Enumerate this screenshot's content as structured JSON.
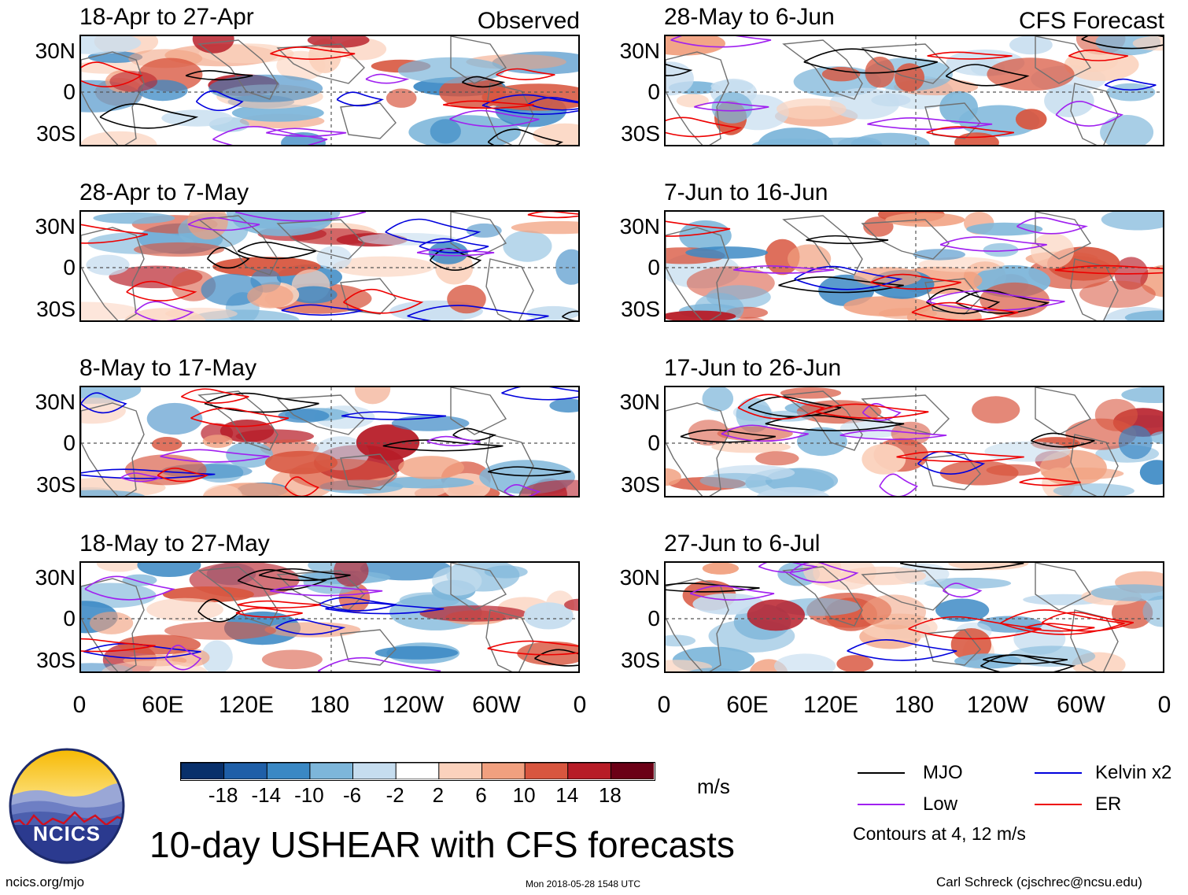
{
  "chart_data": {
    "type": "heatmap",
    "title": "10-day USHEAR with CFS forecasts",
    "units": "m/s",
    "columns": [
      {
        "tag": "Observed",
        "panels": [
          {
            "title": "18-Apr to 27-Apr"
          },
          {
            "title": "28-Apr to 7-May"
          },
          {
            "title": "8-May to 17-May"
          },
          {
            "title": "18-May to 27-May"
          }
        ]
      },
      {
        "tag": "CFS Forecast",
        "panels": [
          {
            "title": "28-May to 6-Jun"
          },
          {
            "title": "7-Jun to 16-Jun"
          },
          {
            "title": "17-Jun to 26-Jun"
          },
          {
            "title": "27-Jun to 6-Jul"
          }
        ]
      }
    ],
    "y_ticks": [
      "30N",
      "0",
      "30S"
    ],
    "x_ticks": [
      "0",
      "60E",
      "120E",
      "180",
      "120W",
      "60W",
      "0"
    ],
    "colorbar": {
      "ticks": [
        "-18",
        "-14",
        "-10",
        "-6",
        "-2",
        "2",
        "6",
        "10",
        "14",
        "18"
      ],
      "colors": [
        "#08306b",
        "#1f5fa8",
        "#3a88c4",
        "#7db6da",
        "#c6ddef",
        "#ffffff",
        "#fbd2bd",
        "#f1a07f",
        "#d8563f",
        "#b71c27",
        "#6b0016"
      ]
    },
    "legend": [
      {
        "label": "MJO",
        "color": "#000000"
      },
      {
        "label": "Kelvin x2",
        "color": "#0000dd"
      },
      {
        "label": "Low",
        "color": "#a020f0"
      },
      {
        "label": "ER",
        "color": "#ee0000"
      }
    ],
    "contour_note": "Contours at 4, 12 m/s"
  },
  "footer": {
    "logo_text": "NCICS",
    "site": "ncics.org/mjo",
    "timestamp": "Mon 2018-05-28 1548 UTC",
    "author": "Carl Schreck (cjschrec@ncsu.edu)"
  }
}
